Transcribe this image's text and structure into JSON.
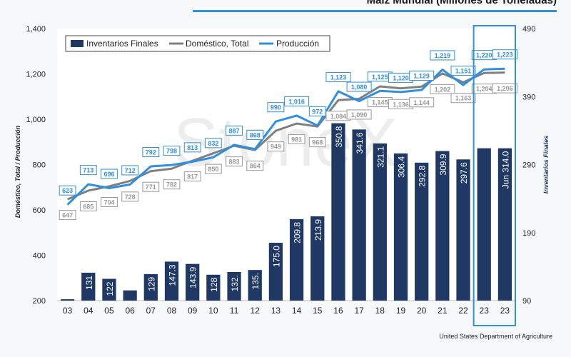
{
  "chart_data": {
    "type": "bar+line",
    "title": "Maíz Mundial (Millones de Toneladas)",
    "source": "United States Department of Agriculture",
    "watermark": "StoneX",
    "categories": [
      "03",
      "04",
      "05",
      "06",
      "07",
      "08",
      "09",
      "10",
      "11",
      "12",
      "13",
      "14",
      "15",
      "16",
      "17",
      "18",
      "19",
      "20",
      "21",
      "22",
      "23",
      "23"
    ],
    "ylabel_left": "Doméstico, Total / Producción",
    "ylabel_right": "Inventarios Finales",
    "ylim_left": [
      200,
      1400
    ],
    "yticks_left": [
      "200",
      "400",
      "600",
      "800",
      "1,000",
      "1,200",
      "1,400"
    ],
    "ylim_right": [
      90,
      490
    ],
    "yticks_right": [
      "90",
      "190",
      "290",
      "390",
      "490"
    ],
    "legend": [
      "Inventarios Finales",
      "Doméstico, Total",
      "Producción"
    ],
    "colors": {
      "bars": "#1f3864",
      "domestic": "#808080",
      "production": "#2f8fe0",
      "highlight": "#2f8fe0"
    },
    "series": [
      {
        "name": "Inventarios Finales",
        "axis": "right",
        "values": [
          92,
          131,
          122,
          105,
          129,
          147.3,
          143.9,
          128,
          132,
          135,
          175.0,
          209.8,
          213.9,
          350.8,
          341.6,
          321.1,
          306.4,
          292.8,
          309.9,
          297.6,
          314.0,
          314.0
        ],
        "labels": [
          "",
          "131",
          "122",
          "",
          "129",
          "147.3",
          "143.9",
          "128",
          "132.",
          "135.",
          "175.0",
          "209.8",
          "213.9",
          "350.8",
          "341.6",
          "321.1",
          "306.4",
          "292.8",
          "309.9",
          "297.6",
          "",
          "Jun 314.0"
        ]
      },
      {
        "name": "Doméstico, Total",
        "axis": "left",
        "values": [
          647,
          685,
          704,
          728,
          771,
          782,
          817,
          850,
          883,
          864,
          949,
          981,
          968,
          1084,
          1090,
          1145,
          1136,
          1144,
          1202,
          1163,
          1204,
          1206
        ],
        "labels": [
          "647",
          "685",
          "704",
          "728",
          "771",
          "782",
          "817",
          "850",
          "883",
          "864",
          "949",
          "981",
          "968",
          "1,084",
          "1,090",
          "1,145",
          "1,136",
          "1,144",
          "1,202",
          "1,163",
          "1,204",
          "1,206"
        ]
      },
      {
        "name": "Producción",
        "axis": "left",
        "values": [
          623,
          713,
          696,
          712,
          792,
          798,
          813,
          832,
          887,
          868,
          990,
          1016,
          972,
          1123,
          1080,
          1125,
          1120,
          1129,
          1219,
          1151,
          1220,
          1223
        ],
        "labels": [
          "623",
          "713",
          "696",
          "712",
          "792",
          "798",
          "813",
          "832",
          "887",
          "868",
          "990",
          "1,016",
          "972",
          "1,123",
          "1,080",
          "1,125",
          "1,120",
          "1,129",
          "1,219",
          "1,151",
          "1,220",
          "1,223"
        ]
      }
    ]
  }
}
